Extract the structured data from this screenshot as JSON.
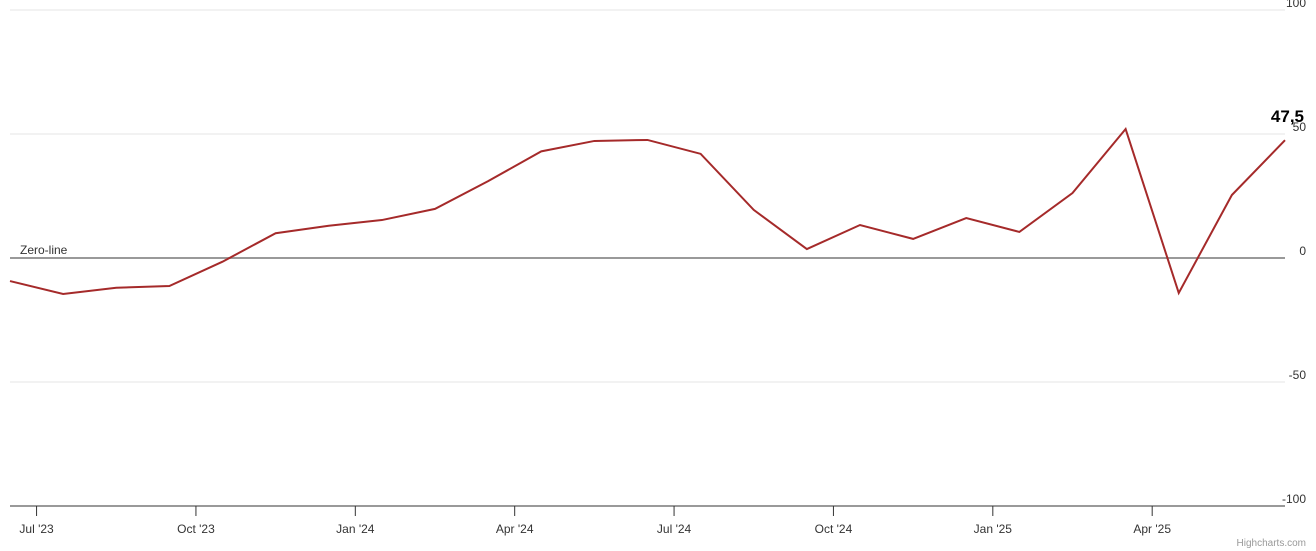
{
  "chart_data": {
    "type": "line",
    "x": [
      "2023-06",
      "2023-07",
      "2023-08",
      "2023-09",
      "2023-10",
      "2023-11",
      "2023-12",
      "2024-01",
      "2024-02",
      "2024-03",
      "2024-04",
      "2024-05",
      "2024-06",
      "2024-07",
      "2024-08",
      "2024-09",
      "2024-10",
      "2024-11",
      "2024-12",
      "2025-01",
      "2025-02",
      "2025-03",
      "2025-04",
      "2025-05",
      "2025-06"
    ],
    "series": [
      {
        "color": "#a52a2a",
        "values": [
          -9.3,
          -14.5,
          -12,
          -11.3,
          -1.5,
          10,
          13,
          15.3,
          19.8,
          31,
          43,
          47.2,
          47.6,
          42,
          19.4,
          3.6,
          13.3,
          7.7,
          16.1,
          10.5,
          26.2,
          52,
          -14.1,
          25.4,
          47.5
        ],
        "value_labels": [
          null,
          null,
          null,
          null,
          null,
          null,
          null,
          null,
          null,
          null,
          null,
          null,
          null,
          null,
          null,
          null,
          null,
          null,
          null,
          null,
          null,
          null,
          null,
          null,
          "47,5"
        ]
      }
    ],
    "xlim": [
      "2023-06",
      "2025-06"
    ],
    "xticks": [
      {
        "value": "2023-07",
        "label": "Jul '23"
      },
      {
        "value": "2023-10",
        "label": "Oct '23"
      },
      {
        "value": "2024-01",
        "label": "Jan '24"
      },
      {
        "value": "2024-04",
        "label": "Apr '24"
      },
      {
        "value": "2024-07",
        "label": "Jul '24"
      },
      {
        "value": "2024-10",
        "label": "Oct '24"
      },
      {
        "value": "2025-01",
        "label": "Jan '25"
      },
      {
        "value": "2025-04",
        "label": "Apr '25"
      }
    ],
    "ylim": [
      -100,
      100
    ],
    "yticks": [
      -100,
      -50,
      0,
      50,
      100
    ],
    "grid": true,
    "zero_line_label": "Zero-line",
    "credits": "Highcharts.com"
  }
}
